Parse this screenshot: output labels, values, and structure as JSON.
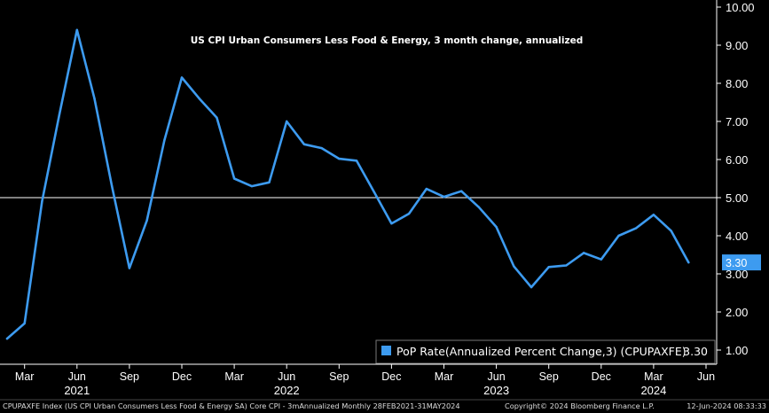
{
  "chart_data": {
    "type": "line",
    "title": "US CPI Urban Consumers Less Food & Energy, 3 month change, annualized",
    "x": [
      "2021-02",
      "2021-03",
      "2021-04",
      "2021-05",
      "2021-06",
      "2021-07",
      "2021-08",
      "2021-09",
      "2021-10",
      "2021-11",
      "2021-12",
      "2022-01",
      "2022-02",
      "2022-03",
      "2022-04",
      "2022-05",
      "2022-06",
      "2022-07",
      "2022-08",
      "2022-09",
      "2022-10",
      "2022-11",
      "2022-12",
      "2023-01",
      "2023-02",
      "2023-03",
      "2023-04",
      "2023-05",
      "2023-06",
      "2023-07",
      "2023-08",
      "2023-09",
      "2023-10",
      "2023-11",
      "2023-12",
      "2024-01",
      "2024-02",
      "2024-03",
      "2024-04",
      "2024-05"
    ],
    "series": [
      {
        "name": "PoP Rate(Annualized Percent Change,3) (CPUPAXFE)",
        "color": "#3d9bf0",
        "values": [
          1.3,
          1.7,
          4.9,
          7.2,
          9.4,
          7.6,
          5.3,
          3.15,
          4.4,
          6.5,
          8.15,
          7.6,
          7.1,
          5.5,
          5.3,
          5.4,
          7.0,
          6.4,
          6.3,
          6.02,
          5.97,
          5.15,
          4.32,
          4.58,
          5.23,
          5.02,
          5.17,
          4.75,
          4.23,
          3.2,
          2.65,
          3.18,
          3.22,
          3.55,
          3.38,
          4.0,
          4.2,
          4.55,
          4.13,
          3.3
        ]
      }
    ],
    "yticks": [
      "1.00",
      "2.00",
      "3.00",
      "4.00",
      "5.00",
      "6.00",
      "7.00",
      "8.00",
      "9.00",
      "10.00"
    ],
    "ylim": [
      0.6,
      10.2
    ],
    "xticks": [
      {
        "label": "Mar",
        "date": "2021-03"
      },
      {
        "label": "Jun",
        "date": "2021-06"
      },
      {
        "label": "Sep",
        "date": "2021-09"
      },
      {
        "label": "Dec",
        "date": "2021-12"
      },
      {
        "label": "Mar",
        "date": "2022-03"
      },
      {
        "label": "Jun",
        "date": "2022-06"
      },
      {
        "label": "Sep",
        "date": "2022-09"
      },
      {
        "label": "Dec",
        "date": "2022-12"
      },
      {
        "label": "Mar",
        "date": "2023-03"
      },
      {
        "label": "Jun",
        "date": "2023-06"
      },
      {
        "label": "Sep",
        "date": "2023-09"
      },
      {
        "label": "Dec",
        "date": "2023-12"
      },
      {
        "label": "Mar",
        "date": "2024-03"
      },
      {
        "label": "Jun",
        "date": "2024-06"
      }
    ],
    "years": [
      {
        "label": "2021",
        "date": "2021-06"
      },
      {
        "label": "2022",
        "date": "2022-06"
      },
      {
        "label": "2023",
        "date": "2023-06"
      },
      {
        "label": "2024",
        "date": "2024-03"
      }
    ],
    "reference_line": 5.0,
    "last_value_label": "3.30",
    "legend": {
      "text": "PoP Rate(Annualized Percent Change,3) (CPUPAXFE)",
      "value": "3.30",
      "position": "bottom-right"
    },
    "background": "#000000",
    "line_color": "#3d9bf0"
  },
  "footer": {
    "left": "CPUPAXFE Index (US CPI Urban Consumers Less Food & Energy SA) Core CPI - 3mAnnualized  Monthly 28FEB2021-31MAY2024",
    "copyright": "Copyright© 2024 Bloomberg Finance L.P.",
    "timestamp": "12-Jun-2024 08:33:33"
  }
}
